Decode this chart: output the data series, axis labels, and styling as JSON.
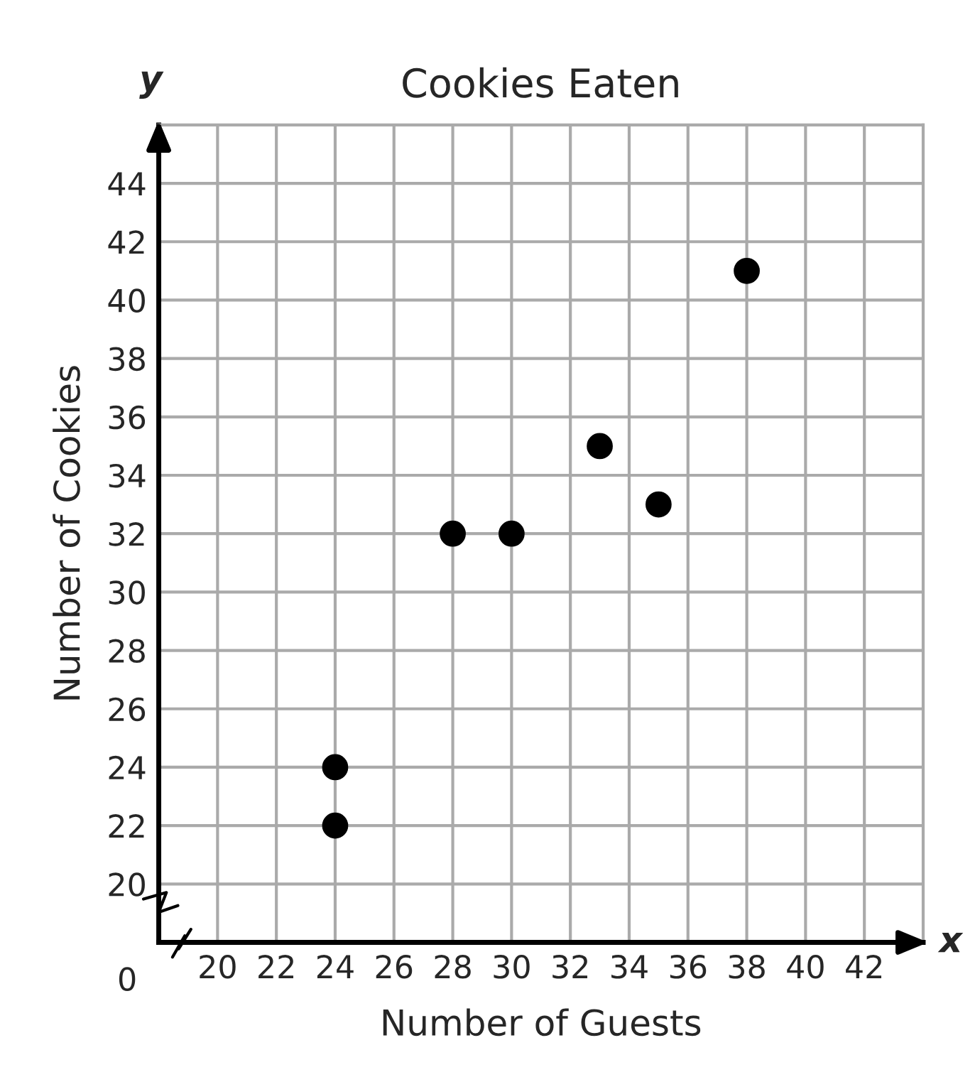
{
  "chart_data": {
    "type": "scatter",
    "title": "Cookies Eaten",
    "xlabel": "Number of Guests",
    "ylabel": "Number of Cookies",
    "x": [
      24,
      24,
      28,
      30,
      33,
      35,
      38
    ],
    "series": [
      {
        "color": "#000000",
        "values": [
          22,
          24,
          32,
          32,
          35,
          33,
          41
        ]
      }
    ],
    "xlim": [
      18,
      44
    ],
    "ylim": [
      18,
      46
    ],
    "xticks": [
      20,
      22,
      24,
      26,
      28,
      30,
      32,
      34,
      36,
      38,
      40,
      42
    ],
    "yticks": [
      20,
      22,
      24,
      26,
      28,
      30,
      32,
      34,
      36,
      38,
      40,
      42,
      44
    ],
    "grid": true,
    "marker": "circle",
    "annotations": [
      "y",
      "x",
      "0"
    ]
  }
}
